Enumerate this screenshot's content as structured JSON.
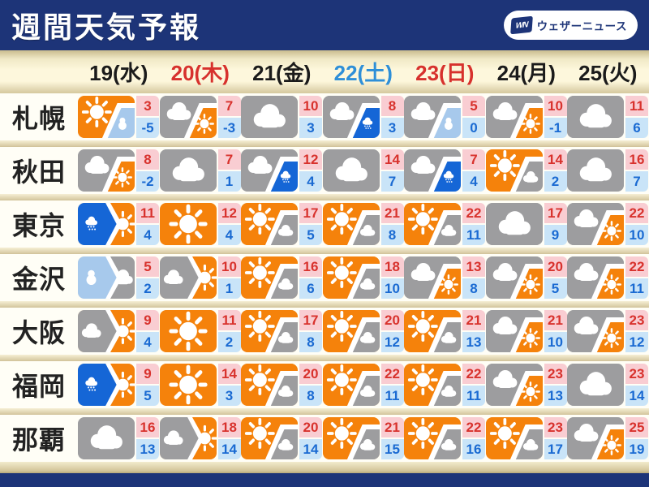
{
  "header": {
    "title": "週間天気予報",
    "logo": {
      "mark": "WN",
      "text": "ウェザーニュース"
    }
  },
  "dates": [
    {
      "label": "19(水)",
      "color": "black"
    },
    {
      "label": "20(木)",
      "color": "red"
    },
    {
      "label": "21(金)",
      "color": "black"
    },
    {
      "label": "22(土)",
      "color": "blue"
    },
    {
      "label": "23(日)",
      "color": "red"
    },
    {
      "label": "24(月)",
      "color": "black"
    },
    {
      "label": "25(火)",
      "color": "black"
    }
  ],
  "rows": [
    {
      "city": "札幌",
      "cells": [
        {
          "icon": "sun_snow",
          "high": "3",
          "low": "-5"
        },
        {
          "icon": "cloud_sun",
          "high": "7",
          "low": "-3"
        },
        {
          "icon": "cloud",
          "high": "10",
          "low": "3"
        },
        {
          "icon": "cloud_rain",
          "high": "8",
          "low": "3"
        },
        {
          "icon": "cloud_snow",
          "high": "5",
          "low": "0"
        },
        {
          "icon": "cloud_sun",
          "high": "10",
          "low": "-1"
        },
        {
          "icon": "cloud",
          "high": "11",
          "low": "6"
        }
      ]
    },
    {
      "city": "秋田",
      "cells": [
        {
          "icon": "cloud_sun",
          "high": "8",
          "low": "-2"
        },
        {
          "icon": "cloud",
          "high": "7",
          "low": "1"
        },
        {
          "icon": "cloud_rain",
          "high": "12",
          "low": "4"
        },
        {
          "icon": "cloud",
          "high": "14",
          "low": "7"
        },
        {
          "icon": "cloud_rain",
          "high": "7",
          "low": "4"
        },
        {
          "icon": "sun_cloud",
          "high": "14",
          "low": "2"
        },
        {
          "icon": "cloud",
          "high": "16",
          "low": "7"
        }
      ]
    },
    {
      "city": "東京",
      "cells": [
        {
          "icon": "rain_to_sun",
          "high": "11",
          "low": "4"
        },
        {
          "icon": "sun",
          "high": "12",
          "low": "4"
        },
        {
          "icon": "sun_cloud",
          "high": "17",
          "low": "5"
        },
        {
          "icon": "sun_cloud",
          "high": "21",
          "low": "8"
        },
        {
          "icon": "sun_cloud",
          "high": "22",
          "low": "11"
        },
        {
          "icon": "cloud",
          "high": "17",
          "low": "9"
        },
        {
          "icon": "cloud_sun",
          "high": "22",
          "low": "10"
        }
      ]
    },
    {
      "city": "金沢",
      "cells": [
        {
          "icon": "snow_to_cloud",
          "high": "5",
          "low": "2"
        },
        {
          "icon": "cloud_to_sun",
          "high": "10",
          "low": "1"
        },
        {
          "icon": "sun_cloud",
          "high": "16",
          "low": "6"
        },
        {
          "icon": "sun_cloud",
          "high": "18",
          "low": "10"
        },
        {
          "icon": "cloud_sun",
          "high": "13",
          "low": "8"
        },
        {
          "icon": "cloud_sun",
          "high": "20",
          "low": "5"
        },
        {
          "icon": "cloud_sun",
          "high": "22",
          "low": "11"
        }
      ]
    },
    {
      "city": "大阪",
      "cells": [
        {
          "icon": "cloud_to_sun",
          "high": "9",
          "low": "4"
        },
        {
          "icon": "sun",
          "high": "11",
          "low": "2"
        },
        {
          "icon": "sun_cloud",
          "high": "17",
          "low": "8"
        },
        {
          "icon": "sun_cloud",
          "high": "20",
          "low": "12"
        },
        {
          "icon": "sun_cloud",
          "high": "21",
          "low": "13"
        },
        {
          "icon": "cloud_sun",
          "high": "21",
          "low": "10"
        },
        {
          "icon": "cloud_sun",
          "high": "23",
          "low": "12"
        }
      ]
    },
    {
      "city": "福岡",
      "cells": [
        {
          "icon": "rain_to_sun",
          "high": "9",
          "low": "5"
        },
        {
          "icon": "sun",
          "high": "14",
          "low": "3"
        },
        {
          "icon": "sun_cloud",
          "high": "20",
          "low": "8"
        },
        {
          "icon": "sun_cloud",
          "high": "22",
          "low": "11"
        },
        {
          "icon": "sun_cloud",
          "high": "22",
          "low": "11"
        },
        {
          "icon": "cloud_sun",
          "high": "23",
          "low": "13"
        },
        {
          "icon": "cloud",
          "high": "23",
          "low": "14"
        }
      ]
    },
    {
      "city": "那覇",
      "cells": [
        {
          "icon": "cloud",
          "high": "16",
          "low": "13"
        },
        {
          "icon": "cloud_to_sun",
          "high": "18",
          "low": "14"
        },
        {
          "icon": "sun_cloud",
          "high": "20",
          "low": "14"
        },
        {
          "icon": "sun_cloud",
          "high": "21",
          "low": "15"
        },
        {
          "icon": "sun_cloud",
          "high": "22",
          "low": "16"
        },
        {
          "icon": "sun_cloud",
          "high": "23",
          "low": "17"
        },
        {
          "icon": "cloud_sun",
          "high": "25",
          "low": "19"
        }
      ]
    }
  ],
  "colors": {
    "navy": "#1d3478",
    "orange": "#f5820b",
    "gray": "#9d9d9f",
    "rain_blue": "#1566d6",
    "snow_blue": "#a7c9ec",
    "temp_high_bg": "#f9cdd2",
    "temp_low_bg": "#c9e4f8",
    "temp_high_text": "#d8322d",
    "temp_low_text": "#1a6ad2",
    "date_black": "#1b1b1b",
    "date_red": "#d7312d",
    "date_blue": "#2e8fd8"
  },
  "chart_data": {
    "type": "table",
    "title": "週間天気予報",
    "columns": [
      "city",
      "19(水)",
      "20(木)",
      "21(金)",
      "22(土)",
      "23(日)",
      "24(月)",
      "25(火)"
    ],
    "rows": [
      [
        "札幌",
        "sun_snow 3/-5",
        "cloud_sun 7/-3",
        "cloud 10/3",
        "cloud_rain 8/3",
        "cloud_snow 5/0",
        "cloud_sun 10/-1",
        "cloud 11/6"
      ],
      [
        "秋田",
        "cloud_sun 8/-2",
        "cloud 7/1",
        "cloud_rain 12/4",
        "cloud 14/7",
        "cloud_rain 7/4",
        "sun_cloud 14/2",
        "cloud 16/7"
      ],
      [
        "東京",
        "rain_to_sun 11/4",
        "sun 12/4",
        "sun_cloud 17/5",
        "sun_cloud 21/8",
        "sun_cloud 22/11",
        "cloud 17/9",
        "cloud_sun 22/10"
      ],
      [
        "金沢",
        "snow_to_cloud 5/2",
        "cloud_to_sun 10/1",
        "sun_cloud 16/6",
        "sun_cloud 18/10",
        "cloud_sun 13/8",
        "cloud_sun 20/5",
        "cloud_sun 22/11"
      ],
      [
        "大阪",
        "cloud_to_sun 9/4",
        "sun 11/2",
        "sun_cloud 17/8",
        "sun_cloud 20/12",
        "sun_cloud 21/13",
        "cloud_sun 21/10",
        "cloud_sun 23/12"
      ],
      [
        "福岡",
        "rain_to_sun 9/5",
        "sun 14/3",
        "sun_cloud 20/8",
        "sun_cloud 22/11",
        "sun_cloud 22/11",
        "cloud_sun 23/13",
        "cloud 23/14"
      ],
      [
        "那覇",
        "cloud 16/13",
        "cloud_to_sun 18/14",
        "sun_cloud 20/14",
        "sun_cloud 21/15",
        "sun_cloud 22/16",
        "sun_cloud 23/17",
        "cloud_sun 25/19"
      ]
    ]
  }
}
